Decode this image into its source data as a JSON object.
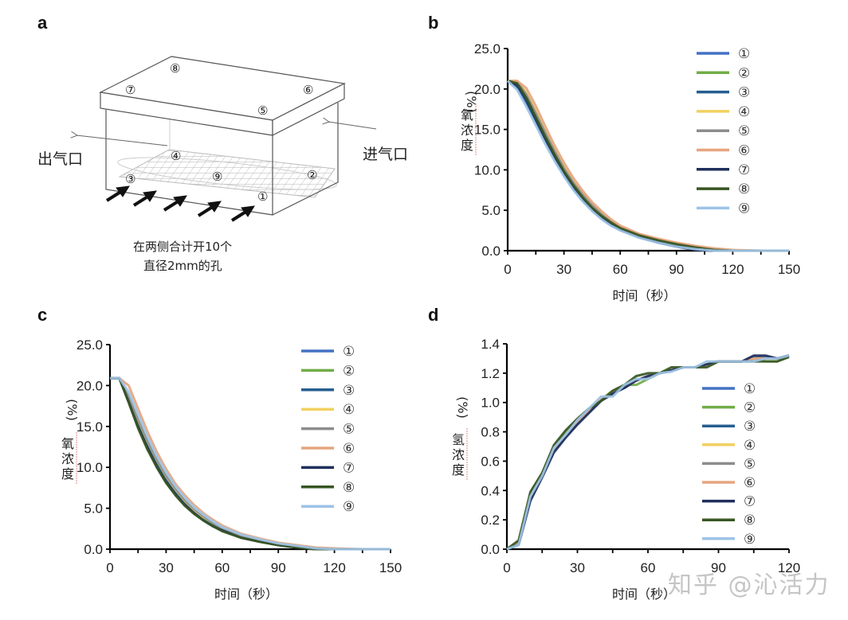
{
  "panels": {
    "a": {
      "letter": "a",
      "outlet_label": "出气口",
      "inlet_label": "进气口",
      "note_line1": "在两侧合计开10个",
      "note_line2": "直径2mm的孔",
      "positions": [
        "①",
        "②",
        "③",
        "④",
        "⑤",
        "⑥",
        "⑦",
        "⑧",
        "⑨"
      ]
    },
    "b": {
      "letter": "b"
    },
    "c": {
      "letter": "c"
    },
    "d": {
      "letter": "d"
    }
  },
  "legend_labels": [
    "①",
    "②",
    "③",
    "④",
    "⑤",
    "⑥",
    "⑦",
    "⑧",
    "⑨"
  ],
  "series_colors": [
    "#4472C4",
    "#70AD47",
    "#255E91",
    "#F2D060",
    "#8C8C8C",
    "#E6A57E",
    "#1F2F5C",
    "#375623",
    "#9DC3E6"
  ],
  "watermark": "知乎 @沁活力",
  "chart_data": [
    {
      "id": "b",
      "type": "line",
      "title": "",
      "xlabel": "时间（秒）",
      "ylabel_main": "氧浓度",
      "ylabel_unit": "(%)",
      "xlim": [
        0,
        150
      ],
      "ylim": [
        0,
        25
      ],
      "xticks": [
        0,
        30,
        60,
        90,
        120,
        150
      ],
      "xtick_labels": [
        "0",
        "30",
        "60",
        "90",
        "120",
        "150"
      ],
      "yticks": [
        0,
        5,
        10,
        15,
        20,
        25
      ],
      "ytick_labels": [
        "0.0",
        "5.0",
        "10.0",
        "15.0",
        "20.0",
        "25.0"
      ],
      "grid": false,
      "legend_position": "top-right",
      "x": [
        0,
        5,
        10,
        15,
        20,
        25,
        30,
        35,
        40,
        45,
        50,
        55,
        60,
        70,
        80,
        90,
        100,
        110,
        120,
        135,
        150
      ],
      "series": [
        {
          "name": "①",
          "values": [
            21.0,
            20.2,
            18.2,
            15.9,
            13.6,
            11.4,
            9.4,
            7.7,
            6.2,
            5.0,
            4.0,
            3.2,
            2.6,
            1.7,
            1.1,
            0.6,
            0.2,
            0.0,
            0.0,
            0.0,
            0.0
          ]
        },
        {
          "name": "②",
          "values": [
            21.0,
            20.8,
            19.0,
            16.7,
            14.3,
            12.0,
            9.9,
            8.2,
            6.7,
            5.4,
            4.4,
            3.5,
            2.8,
            1.9,
            1.3,
            0.8,
            0.4,
            0.1,
            0.0,
            0.0,
            0.0
          ]
        },
        {
          "name": "③",
          "values": [
            21.0,
            20.3,
            18.4,
            16.0,
            13.7,
            11.5,
            9.5,
            7.8,
            6.3,
            5.1,
            4.1,
            3.3,
            2.6,
            1.7,
            1.1,
            0.6,
            0.2,
            0.0,
            0.0,
            0.0,
            0.0
          ]
        },
        {
          "name": "④",
          "values": [
            21.0,
            21.0,
            19.6,
            17.3,
            14.8,
            12.5,
            10.4,
            8.6,
            7.0,
            5.7,
            4.6,
            3.7,
            3.0,
            2.0,
            1.4,
            0.9,
            0.5,
            0.2,
            0.0,
            0.0,
            0.0
          ]
        },
        {
          "name": "⑤",
          "values": [
            21.0,
            20.9,
            19.3,
            17.0,
            14.6,
            12.3,
            10.2,
            8.4,
            6.9,
            5.6,
            4.5,
            3.6,
            2.9,
            2.0,
            1.3,
            0.8,
            0.4,
            0.1,
            0.0,
            0.0,
            0.0
          ]
        },
        {
          "name": "⑥",
          "values": [
            21.0,
            21.0,
            20.1,
            17.9,
            15.4,
            13.0,
            10.9,
            9.0,
            7.4,
            6.0,
            4.9,
            3.9,
            3.1,
            2.1,
            1.5,
            1.0,
            0.6,
            0.3,
            0.1,
            0.0,
            0.0
          ]
        },
        {
          "name": "⑦",
          "values": [
            21.0,
            20.5,
            18.7,
            16.3,
            13.9,
            11.7,
            9.6,
            7.9,
            6.4,
            5.2,
            4.1,
            3.3,
            2.6,
            1.7,
            1.0,
            0.5,
            0.1,
            0.0,
            0.0,
            0.0,
            0.0
          ]
        },
        {
          "name": "⑧",
          "values": [
            21.0,
            20.7,
            18.9,
            16.5,
            14.1,
            11.9,
            9.8,
            8.1,
            6.6,
            5.3,
            4.3,
            3.5,
            2.8,
            1.9,
            1.3,
            0.8,
            0.4,
            0.1,
            0.0,
            0.0,
            0.0
          ]
        },
        {
          "name": "⑨",
          "values": [
            21.0,
            19.9,
            17.8,
            15.5,
            13.2,
            11.1,
            9.2,
            7.5,
            6.1,
            4.9,
            3.9,
            3.1,
            2.5,
            1.6,
            1.0,
            0.5,
            0.2,
            0.0,
            0.0,
            0.0,
            0.0
          ]
        }
      ]
    },
    {
      "id": "c",
      "type": "line",
      "title": "",
      "xlabel": "时间（秒）",
      "ylabel_main": "氧浓度",
      "ylabel_unit": "(%)",
      "xlim": [
        0,
        150
      ],
      "ylim": [
        0,
        25
      ],
      "xticks": [
        0,
        30,
        60,
        90,
        120,
        150
      ],
      "xtick_labels": [
        "0",
        "30",
        "60",
        "90",
        "120",
        "150"
      ],
      "yticks": [
        0,
        5,
        10,
        15,
        20,
        25
      ],
      "ytick_labels": [
        "0.0",
        "5.0",
        "10.0",
        "15.0",
        "20.0",
        "25.0"
      ],
      "grid": false,
      "legend_position": "top-right",
      "x": [
        0,
        5,
        10,
        15,
        20,
        25,
        30,
        35,
        40,
        45,
        50,
        55,
        60,
        70,
        80,
        90,
        100,
        110,
        120,
        135,
        150
      ],
      "series": [
        {
          "name": "①",
          "values": [
            20.9,
            20.9,
            18.4,
            15.5,
            12.9,
            10.6,
            8.7,
            7.1,
            5.8,
            4.7,
            3.8,
            3.1,
            2.5,
            1.6,
            1.0,
            0.6,
            0.3,
            0.1,
            0.0,
            0.0,
            0.0
          ]
        },
        {
          "name": "②",
          "values": [
            20.9,
            20.9,
            18.1,
            15.1,
            12.5,
            10.2,
            8.3,
            6.8,
            5.5,
            4.4,
            3.6,
            2.9,
            2.3,
            1.5,
            0.9,
            0.5,
            0.2,
            0.0,
            0.0,
            0.0,
            0.0
          ]
        },
        {
          "name": "③",
          "values": [
            20.9,
            20.9,
            18.3,
            15.4,
            12.8,
            10.5,
            8.6,
            7.0,
            5.7,
            4.6,
            3.7,
            3.0,
            2.4,
            1.6,
            1.0,
            0.6,
            0.3,
            0.1,
            0.0,
            0.0,
            0.0
          ]
        },
        {
          "name": "④",
          "values": [
            20.9,
            20.9,
            18.6,
            15.8,
            13.2,
            10.9,
            8.9,
            7.3,
            5.9,
            4.8,
            3.9,
            3.2,
            2.6,
            1.7,
            1.1,
            0.7,
            0.4,
            0.1,
            0.0,
            0.0,
            0.0
          ]
        },
        {
          "name": "⑤",
          "values": [
            20.9,
            20.9,
            18.7,
            15.9,
            13.3,
            11.0,
            9.0,
            7.4,
            6.0,
            4.9,
            4.0,
            3.2,
            2.6,
            1.7,
            1.1,
            0.7,
            0.4,
            0.1,
            0.0,
            0.0,
            0.0
          ]
        },
        {
          "name": "⑥",
          "values": [
            20.9,
            20.9,
            20.0,
            17.2,
            14.4,
            11.9,
            9.8,
            8.0,
            6.6,
            5.4,
            4.4,
            3.6,
            2.9,
            1.9,
            1.3,
            0.8,
            0.5,
            0.2,
            0.1,
            0.0,
            0.0
          ]
        },
        {
          "name": "⑦",
          "values": [
            20.9,
            20.9,
            18.0,
            15.0,
            12.4,
            10.1,
            8.2,
            6.7,
            5.4,
            4.4,
            3.5,
            2.8,
            2.3,
            1.4,
            0.9,
            0.5,
            0.2,
            0.0,
            0.0,
            0.0,
            0.0
          ]
        },
        {
          "name": "⑧",
          "values": [
            20.9,
            20.9,
            17.9,
            14.8,
            12.2,
            10.0,
            8.1,
            6.6,
            5.3,
            4.3,
            3.5,
            2.8,
            2.2,
            1.4,
            0.9,
            0.5,
            0.2,
            0.0,
            0.0,
            0.0,
            0.0
          ]
        },
        {
          "name": "⑨",
          "values": [
            20.9,
            20.9,
            19.2,
            16.5,
            13.8,
            11.4,
            9.4,
            7.7,
            6.3,
            5.1,
            4.2,
            3.4,
            2.7,
            1.8,
            1.2,
            0.7,
            0.4,
            0.1,
            0.0,
            0.0,
            0.0
          ]
        }
      ]
    },
    {
      "id": "d",
      "type": "line",
      "title": "",
      "xlabel": "时间（秒）",
      "ylabel_main": "氢浓度",
      "ylabel_unit": "(%)",
      "xlim": [
        0,
        120
      ],
      "ylim": [
        0,
        1.4
      ],
      "xticks": [
        0,
        30,
        60,
        90,
        120
      ],
      "xtick_labels": [
        "0",
        "30",
        "60",
        "90",
        "120"
      ],
      "yticks": [
        0,
        0.2,
        0.4,
        0.6,
        0.8,
        1.0,
        1.2,
        1.4
      ],
      "ytick_labels": [
        "0.0",
        "0.2",
        "0.4",
        "0.6",
        "0.8",
        "1.0",
        "1.2",
        "1.4"
      ],
      "grid": false,
      "legend_position": "right",
      "x": [
        0,
        5,
        10,
        15,
        20,
        25,
        30,
        35,
        40,
        45,
        50,
        55,
        60,
        65,
        70,
        75,
        80,
        85,
        90,
        95,
        100,
        105,
        110,
        115,
        120
      ],
      "series": [
        {
          "name": "①",
          "values": [
            0.0,
            0.04,
            0.35,
            0.5,
            0.67,
            0.77,
            0.86,
            0.94,
            1.02,
            1.06,
            1.1,
            1.15,
            1.18,
            1.2,
            1.22,
            1.24,
            1.24,
            1.26,
            1.28,
            1.28,
            1.28,
            1.3,
            1.3,
            1.3,
            1.32
          ]
        },
        {
          "name": "②",
          "values": [
            0.0,
            0.05,
            0.38,
            0.52,
            0.7,
            0.8,
            0.88,
            0.96,
            1.02,
            1.08,
            1.12,
            1.12,
            1.16,
            1.2,
            1.22,
            1.24,
            1.24,
            1.26,
            1.28,
            1.28,
            1.28,
            1.3,
            1.28,
            1.28,
            1.32
          ]
        },
        {
          "name": "③",
          "values": [
            0.0,
            0.04,
            0.35,
            0.5,
            0.67,
            0.77,
            0.86,
            0.94,
            1.02,
            1.06,
            1.1,
            1.15,
            1.18,
            1.2,
            1.22,
            1.24,
            1.24,
            1.26,
            1.28,
            1.28,
            1.28,
            1.31,
            1.31,
            1.3,
            1.32
          ]
        },
        {
          "name": "④",
          "values": [
            0.0,
            0.05,
            0.36,
            0.51,
            0.68,
            0.78,
            0.87,
            0.95,
            1.02,
            1.07,
            1.11,
            1.15,
            1.18,
            1.2,
            1.22,
            1.24,
            1.24,
            1.26,
            1.28,
            1.28,
            1.28,
            1.3,
            1.3,
            1.3,
            1.32
          ]
        },
        {
          "name": "⑤",
          "values": [
            0.0,
            0.05,
            0.36,
            0.51,
            0.68,
            0.78,
            0.87,
            0.95,
            1.02,
            1.07,
            1.11,
            1.15,
            1.18,
            1.2,
            1.22,
            1.24,
            1.24,
            1.26,
            1.28,
            1.28,
            1.28,
            1.3,
            1.3,
            1.3,
            1.32
          ]
        },
        {
          "name": "⑥",
          "values": [
            0.0,
            0.05,
            0.36,
            0.51,
            0.68,
            0.78,
            0.87,
            0.95,
            1.02,
            1.07,
            1.11,
            1.15,
            1.18,
            1.2,
            1.22,
            1.24,
            1.24,
            1.26,
            1.28,
            1.28,
            1.28,
            1.3,
            1.3,
            1.3,
            1.32
          ]
        },
        {
          "name": "⑦",
          "values": [
            0.0,
            0.03,
            0.33,
            0.49,
            0.66,
            0.76,
            0.85,
            0.93,
            1.01,
            1.06,
            1.1,
            1.15,
            1.18,
            1.2,
            1.22,
            1.24,
            1.24,
            1.26,
            1.28,
            1.28,
            1.28,
            1.32,
            1.32,
            1.3,
            1.32
          ]
        },
        {
          "name": "⑧",
          "values": [
            0.0,
            0.06,
            0.39,
            0.52,
            0.71,
            0.81,
            0.89,
            0.96,
            1.01,
            1.08,
            1.12,
            1.18,
            1.2,
            1.2,
            1.24,
            1.24,
            1.24,
            1.24,
            1.28,
            1.28,
            1.28,
            1.28,
            1.28,
            1.28,
            1.31
          ]
        },
        {
          "name": "⑨",
          "values": [
            0.0,
            0.03,
            0.36,
            0.5,
            0.69,
            0.78,
            0.88,
            0.96,
            1.04,
            1.04,
            1.12,
            1.16,
            1.16,
            1.2,
            1.21,
            1.24,
            1.24,
            1.28,
            1.28,
            1.28,
            1.28,
            1.28,
            1.3,
            1.3,
            1.32
          ]
        }
      ]
    }
  ]
}
